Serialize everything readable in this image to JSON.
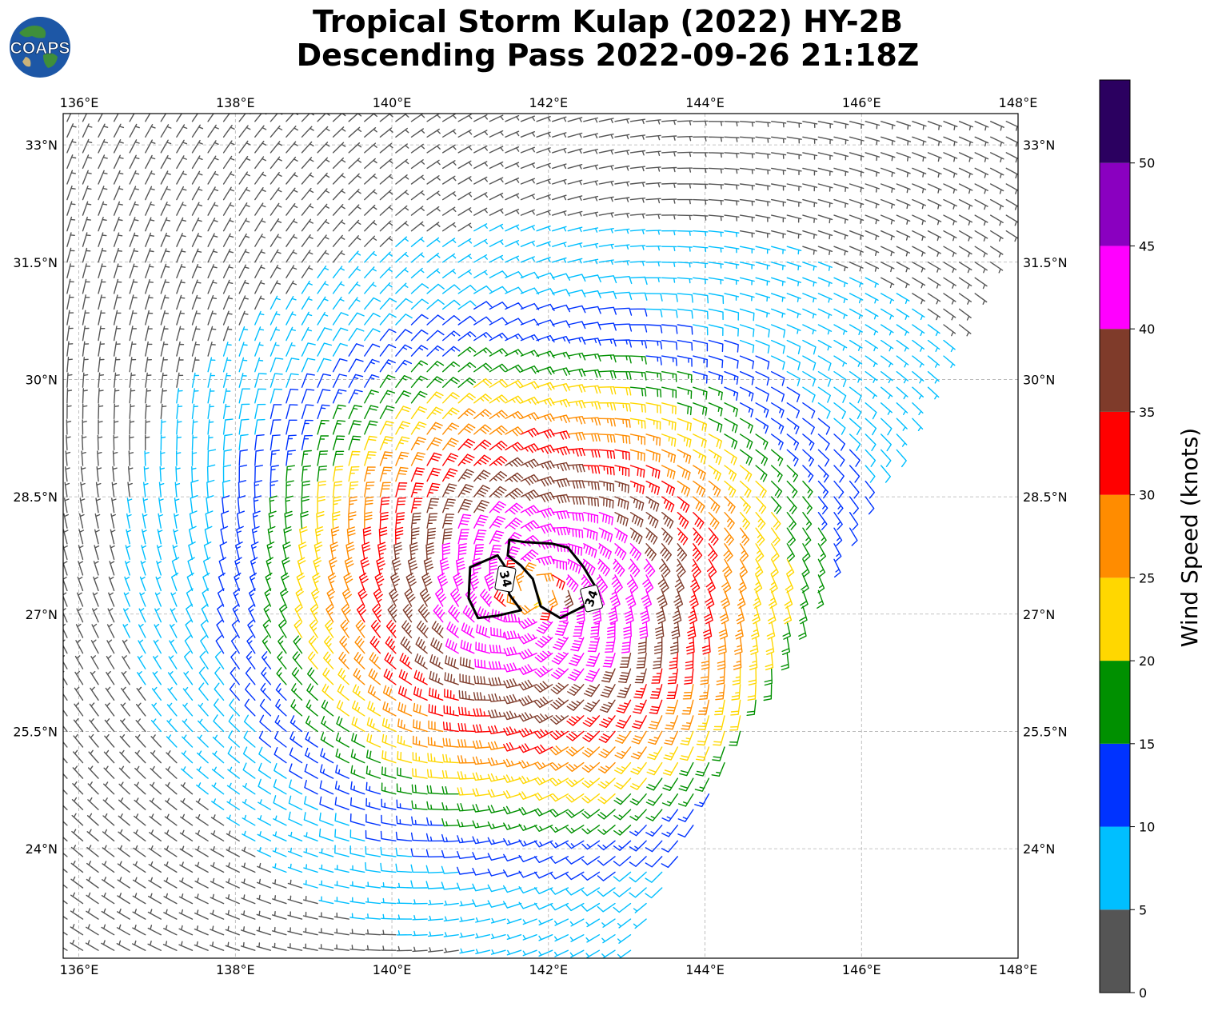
{
  "header": {
    "title_line1": "Tropical Storm Kulap (2022) HY-2B",
    "title_line2": "Descending Pass 2022-09-26 21:18Z",
    "logo_text": "COAPS"
  },
  "chart_data": {
    "type": "wind_barb_map",
    "title": "Tropical Storm Kulap (2022) HY-2B Descending Pass 2022-09-26 21:18Z",
    "x_range": [
      135.8,
      148.0
    ],
    "y_range": [
      22.6,
      33.4
    ],
    "x_ticks": [
      136,
      138,
      140,
      142,
      144,
      146,
      148
    ],
    "x_tick_labels": [
      "136°E",
      "138°E",
      "140°E",
      "142°E",
      "144°E",
      "146°E",
      "148°E"
    ],
    "y_ticks": [
      24.0,
      25.5,
      27.0,
      28.5,
      30.0,
      31.5,
      33.0
    ],
    "y_tick_labels": [
      "24°N",
      "25.5°N",
      "27°N",
      "28.5°N",
      "30°N",
      "31.5°N",
      "33°N"
    ],
    "grid": true,
    "storm_center": {
      "lon": 141.8,
      "lat": 27.3
    },
    "swath": {
      "west_edge_lon": 135.8,
      "east_edge_top_lon": 148.0,
      "east_edge_top_lat": 32.0,
      "east_edge_bottom_lon": 143.0,
      "east_edge_bottom_lat": 22.6
    },
    "contours": [
      {
        "level": 34,
        "label": "34"
      },
      {
        "level": 34,
        "label": "34"
      }
    ],
    "colorbar": {
      "label": "Wind Speed (knots)",
      "ticks": [
        0,
        5,
        10,
        15,
        20,
        25,
        30,
        35,
        40,
        45,
        50
      ],
      "tick_labels": [
        "0",
        "5",
        "10",
        "15",
        "20",
        "25",
        "30",
        "35",
        "40",
        "45",
        "50"
      ],
      "range": [
        0,
        55
      ],
      "bins": [
        {
          "from": 0,
          "to": 5,
          "color": "#555555"
        },
        {
          "from": 5,
          "to": 10,
          "color": "#00bfff"
        },
        {
          "from": 10,
          "to": 15,
          "color": "#0033ff"
        },
        {
          "from": 15,
          "to": 20,
          "color": "#009000"
        },
        {
          "from": 20,
          "to": 25,
          "color": "#ffd700"
        },
        {
          "from": 25,
          "to": 30,
          "color": "#ff8c00"
        },
        {
          "from": 30,
          "to": 35,
          "color": "#ff0000"
        },
        {
          "from": 35,
          "to": 40,
          "color": "#7f3b2a"
        },
        {
          "from": 40,
          "to": 45,
          "color": "#ff00ff"
        },
        {
          "from": 45,
          "to": 50,
          "color": "#8a00c0"
        },
        {
          "from": 50,
          "to": 55,
          "color": "#2b0060"
        }
      ]
    }
  }
}
